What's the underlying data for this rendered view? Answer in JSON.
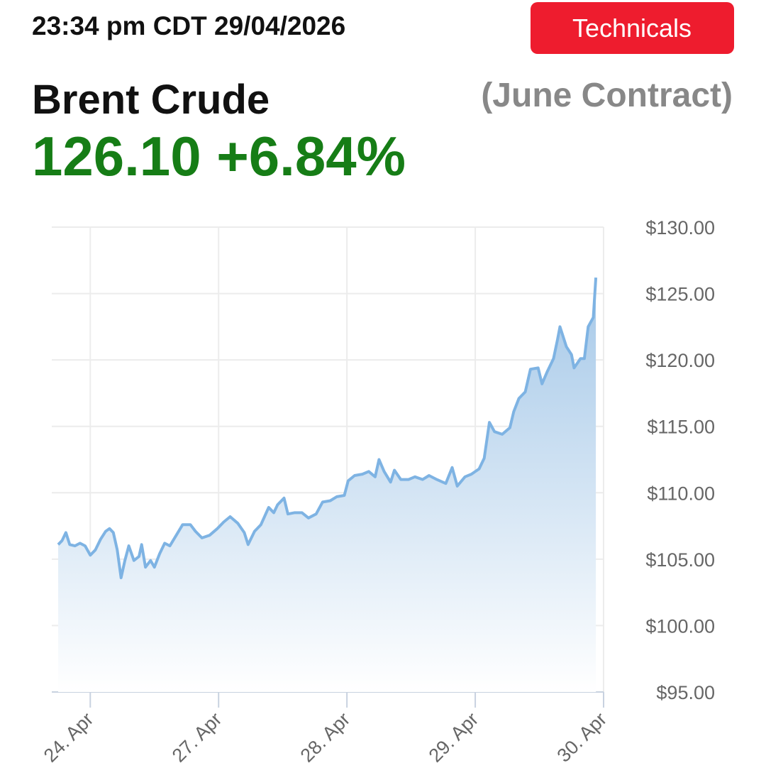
{
  "header": {
    "timestamp": "23:34 pm CDT 29/04/2026",
    "button": "Technicals",
    "name": "Brent Crude",
    "contract": "(June Contract)",
    "price": "126.10",
    "change": "+6.84%"
  },
  "chart_data": {
    "type": "area",
    "color": "#7eb3e3",
    "grid": true,
    "series": [
      {
        "name": "Brent Crude",
        "color": "#7eb3e3",
        "x": [
          -0.25,
          -0.22,
          -0.19,
          -0.16,
          -0.12,
          -0.08,
          -0.04,
          0,
          0.04,
          0.08,
          0.12,
          0.15,
          0.18,
          0.21,
          0.24,
          0.27,
          0.3,
          0.34,
          0.38,
          0.4,
          0.43,
          0.47,
          0.5,
          0.54,
          0.58,
          0.62,
          0.67,
          0.72,
          0.78,
          0.82,
          0.87,
          0.93,
          0.99,
          1.04,
          1.09,
          1.15,
          1.2,
          1.23,
          1.28,
          1.33,
          1.39,
          1.43,
          1.46,
          1.51,
          1.54,
          1.59,
          1.65,
          1.7,
          1.76,
          1.81,
          1.87,
          1.92,
          1.98,
          2.01,
          2.06,
          2.12,
          2.17,
          2.22,
          2.25,
          2.29,
          2.34,
          2.37,
          2.42,
          2.48,
          2.53,
          2.59,
          2.64,
          2.7,
          2.77,
          2.82,
          2.86,
          2.92,
          2.97,
          3.03,
          3.07,
          3.11,
          3.15,
          3.21,
          3.27,
          3.3,
          3.34,
          3.39,
          3.43,
          3.49,
          3.52,
          3.56,
          3.61,
          3.64,
          3.66,
          3.71,
          3.75,
          3.77,
          3.82,
          3.85,
          3.88,
          3.92,
          3.94
        ],
        "values": [
          106.1,
          106.4,
          107.0,
          106.1,
          106.0,
          106.2,
          106.0,
          105.3,
          105.7,
          106.5,
          107.1,
          107.3,
          107.0,
          105.7,
          103.6,
          104.9,
          106.0,
          104.9,
          105.2,
          106.1,
          104.4,
          104.9,
          104.4,
          105.4,
          106.2,
          106.0,
          106.8,
          107.6,
          107.6,
          107.1,
          106.6,
          106.8,
          107.3,
          107.8,
          108.2,
          107.7,
          107.0,
          106.1,
          107.1,
          107.6,
          108.9,
          108.5,
          109.1,
          109.6,
          108.4,
          108.5,
          108.5,
          108.1,
          108.4,
          109.3,
          109.4,
          109.7,
          109.8,
          110.9,
          111.3,
          111.4,
          111.6,
          111.2,
          112.5,
          111.6,
          110.8,
          111.7,
          111.0,
          111.0,
          111.2,
          111.0,
          111.3,
          111.0,
          110.7,
          111.9,
          110.5,
          111.2,
          111.4,
          111.8,
          112.6,
          115.3,
          114.6,
          114.4,
          114.9,
          116.1,
          117.1,
          117.6,
          119.3,
          119.4,
          118.2,
          119.1,
          120.1,
          121.5,
          122.5,
          121.0,
          120.4,
          119.4,
          120.1,
          120.1,
          122.5,
          123.2,
          126.2
        ]
      }
    ],
    "xlim": [
      -0.3,
      4.0
    ],
    "xticks": [
      {
        "value": 0,
        "label": "24. Apr"
      },
      {
        "value": 1,
        "label": "27. Apr"
      },
      {
        "value": 2,
        "label": "28. Apr"
      },
      {
        "value": 3,
        "label": "29. Apr"
      },
      {
        "value": 4,
        "label": "30. Apr"
      }
    ],
    "ylim": [
      95,
      130
    ],
    "yticks": [
      {
        "value": 95,
        "label": "$95.00"
      },
      {
        "value": 100,
        "label": "$100.00"
      },
      {
        "value": 105,
        "label": "$105.00"
      },
      {
        "value": 110,
        "label": "$110.00"
      },
      {
        "value": 115,
        "label": "$115.00"
      },
      {
        "value": 120,
        "label": "$120.00"
      },
      {
        "value": 125,
        "label": "$125.00"
      },
      {
        "value": 130,
        "label": "$130.00"
      }
    ]
  }
}
